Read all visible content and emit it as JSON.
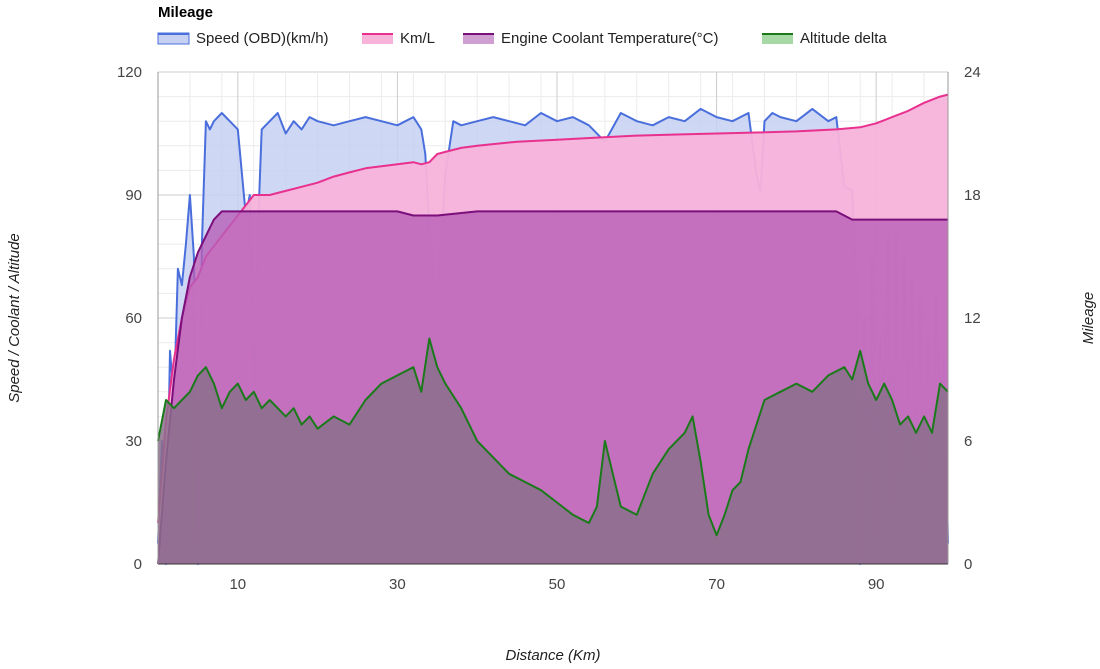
{
  "chart_data": {
    "type": "area",
    "title": "Mileage",
    "xlabel": "Distance (Km)",
    "ylabel_left": "Speed / Coolant / Altitude",
    "ylabel_right": "Mileage",
    "xlim": [
      0,
      99
    ],
    "ylim_left": [
      0,
      120
    ],
    "ylim_right": [
      0,
      24
    ],
    "x_ticks": [
      10,
      30,
      50,
      70,
      90
    ],
    "y_ticks_left": [
      0,
      30,
      60,
      90,
      120
    ],
    "y_ticks_right": [
      0,
      6,
      12,
      18,
      24
    ],
    "grid": true,
    "legend_position": "top-left",
    "series": [
      {
        "name": "Speed (OBD)(km/h)",
        "axis": "left",
        "color": "#4a6fdc",
        "fill": "#c5d0f2",
        "x": [
          0,
          0.5,
          1,
          1.5,
          2,
          2.5,
          3,
          3.5,
          4,
          4.5,
          5,
          5.5,
          6,
          6.5,
          7,
          8,
          9,
          10,
          11,
          11.5,
          12,
          12.5,
          13,
          14,
          15,
          16,
          17,
          18,
          19,
          20,
          22,
          24,
          26,
          28,
          30,
          31,
          32,
          33,
          33.5,
          34,
          34.5,
          35,
          35.5,
          36,
          37,
          38,
          40,
          42,
          44,
          46,
          48,
          50,
          52,
          54,
          56,
          58,
          60,
          62,
          64,
          66,
          68,
          70,
          72,
          74,
          75,
          75.5,
          76,
          77,
          78,
          80,
          82,
          84,
          85,
          86,
          87,
          87.5,
          88,
          88.5,
          89,
          89.5,
          90,
          90.5,
          91,
          91.5,
          92,
          92.5,
          93,
          93.5,
          94,
          94.5,
          95,
          95.5,
          96,
          96.5,
          97,
          97.5,
          98,
          98.5,
          99
        ],
        "values": [
          5,
          30,
          0,
          52,
          40,
          72,
          68,
          78,
          90,
          75,
          0,
          78,
          108,
          106,
          108,
          110,
          108,
          106,
          85,
          90,
          40,
          80,
          106,
          108,
          110,
          105,
          108,
          106,
          109,
          108,
          107,
          108,
          109,
          108,
          107,
          108,
          109,
          106,
          100,
          82,
          70,
          66,
          78,
          95,
          108,
          107,
          108,
          109,
          108,
          107,
          110,
          108,
          109,
          107,
          103,
          110,
          108,
          107,
          109,
          108,
          111,
          109,
          108,
          110,
          95,
          91,
          108,
          110,
          109,
          108,
          111,
          108,
          109,
          92,
          91,
          70,
          0,
          60,
          20,
          75,
          5,
          55,
          40,
          80,
          10,
          80,
          20,
          75,
          40,
          70,
          25,
          65,
          20,
          55,
          30,
          65,
          40,
          50,
          5
        ]
      },
      {
        "name": "Km/L",
        "axis": "right",
        "color": "#e8318f",
        "fill": "#f7b3da",
        "x": [
          0,
          1,
          2,
          3,
          4,
          5,
          6,
          7,
          8,
          9,
          10,
          12,
          14,
          16,
          18,
          20,
          22,
          24,
          26,
          28,
          30,
          32,
          33,
          34,
          35,
          36,
          38,
          40,
          45,
          50,
          55,
          60,
          65,
          70,
          75,
          80,
          85,
          88,
          90,
          92,
          94,
          96,
          98,
          99
        ],
        "values": [
          2,
          7,
          10,
          12,
          13.5,
          14,
          15,
          15.5,
          16,
          16.5,
          17,
          18,
          18,
          18.2,
          18.4,
          18.6,
          18.9,
          19.1,
          19.3,
          19.4,
          19.5,
          19.6,
          19.5,
          19.6,
          20,
          20.1,
          20.3,
          20.4,
          20.6,
          20.7,
          20.8,
          20.9,
          20.95,
          21,
          21.05,
          21.1,
          21.2,
          21.3,
          21.5,
          21.8,
          22.1,
          22.5,
          22.8,
          22.9
        ]
      },
      {
        "name": "Engine Coolant Temperature(°C)",
        "axis": "left",
        "color": "#7b0f7b",
        "fill": "#b85fb8",
        "x": [
          0,
          1,
          2,
          3,
          4,
          5,
          6,
          7,
          8,
          10,
          15,
          20,
          25,
          30,
          32,
          35,
          40,
          50,
          60,
          70,
          80,
          85,
          87,
          90,
          95,
          99
        ],
        "values": [
          0,
          25,
          45,
          60,
          70,
          76,
          80,
          84,
          86,
          86,
          86,
          86,
          86,
          86,
          85,
          85,
          86,
          86,
          86,
          86,
          86,
          86,
          84,
          84,
          84,
          84
        ]
      },
      {
        "name": "Altitude delta",
        "axis": "left",
        "color": "#1a7a1a",
        "fill": "#8c6f8c",
        "x": [
          0,
          1,
          2,
          3,
          4,
          5,
          6,
          7,
          8,
          9,
          10,
          11,
          12,
          13,
          14,
          15,
          16,
          17,
          18,
          19,
          20,
          22,
          24,
          26,
          28,
          30,
          32,
          33,
          34,
          35,
          36,
          38,
          40,
          42,
          44,
          46,
          48,
          50,
          52,
          54,
          55,
          56,
          57,
          58,
          60,
          62,
          64,
          66,
          67,
          68,
          69,
          70,
          71,
          72,
          73,
          74,
          76,
          78,
          80,
          82,
          84,
          86,
          87,
          88,
          89,
          90,
          91,
          92,
          93,
          94,
          95,
          96,
          97,
          98,
          99
        ],
        "values": [
          30,
          40,
          38,
          40,
          42,
          46,
          48,
          44,
          38,
          42,
          44,
          40,
          42,
          38,
          40,
          38,
          36,
          38,
          34,
          36,
          33,
          36,
          34,
          40,
          44,
          46,
          48,
          42,
          55,
          48,
          44,
          38,
          30,
          26,
          22,
          20,
          18,
          15,
          12,
          10,
          14,
          30,
          22,
          14,
          12,
          22,
          28,
          32,
          36,
          25,
          12,
          7,
          12,
          18,
          20,
          28,
          40,
          42,
          44,
          42,
          46,
          48,
          45,
          52,
          44,
          40,
          44,
          40,
          34,
          36,
          32,
          36,
          32,
          44,
          42
        ]
      }
    ]
  }
}
